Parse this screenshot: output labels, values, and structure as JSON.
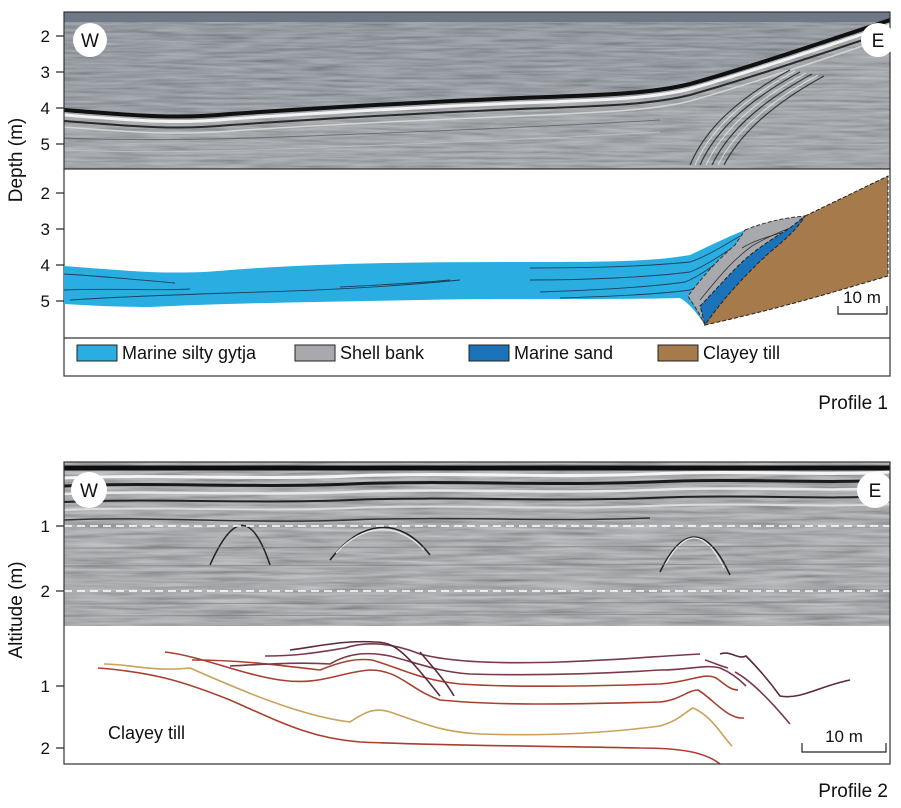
{
  "profile1": {
    "label": "Profile 1",
    "y_axis_label": "Depth (m)",
    "radar_ticks": [
      "2",
      "3",
      "4",
      "5"
    ],
    "interp_ticks": [
      "2",
      "3",
      "4",
      "5"
    ],
    "west_label": "W",
    "east_label": "E",
    "scale_label": "10 m",
    "legend": [
      {
        "label": "Marine silty gytja",
        "color": "#2aaee2"
      },
      {
        "label": "Shell bank",
        "color": "#a8a9ad"
      },
      {
        "label": "Marine sand",
        "color": "#1a72b9"
      },
      {
        "label": "Clayey till",
        "color": "#a77a4c"
      }
    ]
  },
  "profile2": {
    "label": "Profile 2",
    "y_axis_label": "Altitude (m)",
    "radar_ticks": [
      "1",
      "2"
    ],
    "interp_ticks": [
      "1",
      "2"
    ],
    "west_label": "W",
    "east_label": "E",
    "scale_label": "10 m",
    "unit_label": "Clayey till"
  }
}
